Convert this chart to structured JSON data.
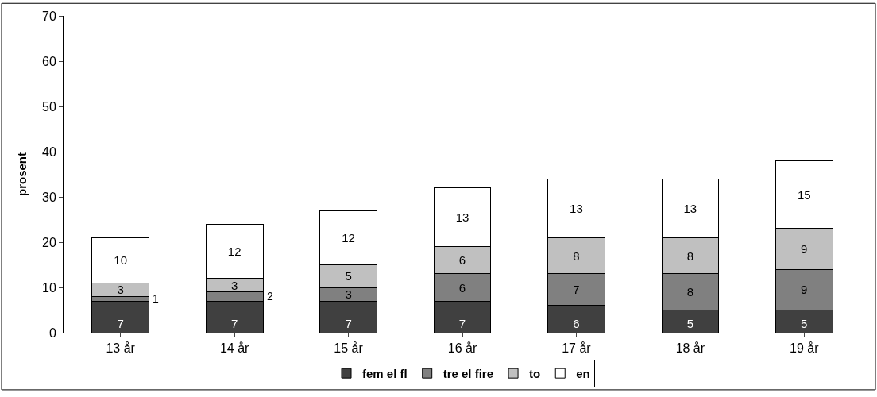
{
  "chart_data": {
    "type": "bar",
    "stacked": true,
    "ylabel": "prosent",
    "categories": [
      "13 år",
      "14 år",
      "15 år",
      "16 år",
      "17 år",
      "18 år",
      "19 år"
    ],
    "series": [
      {
        "name": "fem el fl",
        "color": "#404040",
        "values": [
          7,
          7,
          7,
          7,
          6,
          5,
          5
        ]
      },
      {
        "name": "tre el fire",
        "color": "#808080",
        "values": [
          1,
          2,
          3,
          6,
          7,
          8,
          9
        ]
      },
      {
        "name": "to",
        "color": "#c0c0c0",
        "values": [
          3,
          3,
          5,
          6,
          8,
          8,
          9
        ]
      },
      {
        "name": "en",
        "color": "#ffffff",
        "values": [
          10,
          12,
          12,
          13,
          13,
          13,
          15
        ]
      }
    ],
    "ylim": [
      0,
      70
    ],
    "yticks": [
      0,
      10,
      20,
      30,
      40,
      50,
      60,
      70
    ],
    "data_labels": true,
    "legend": "bottom"
  }
}
